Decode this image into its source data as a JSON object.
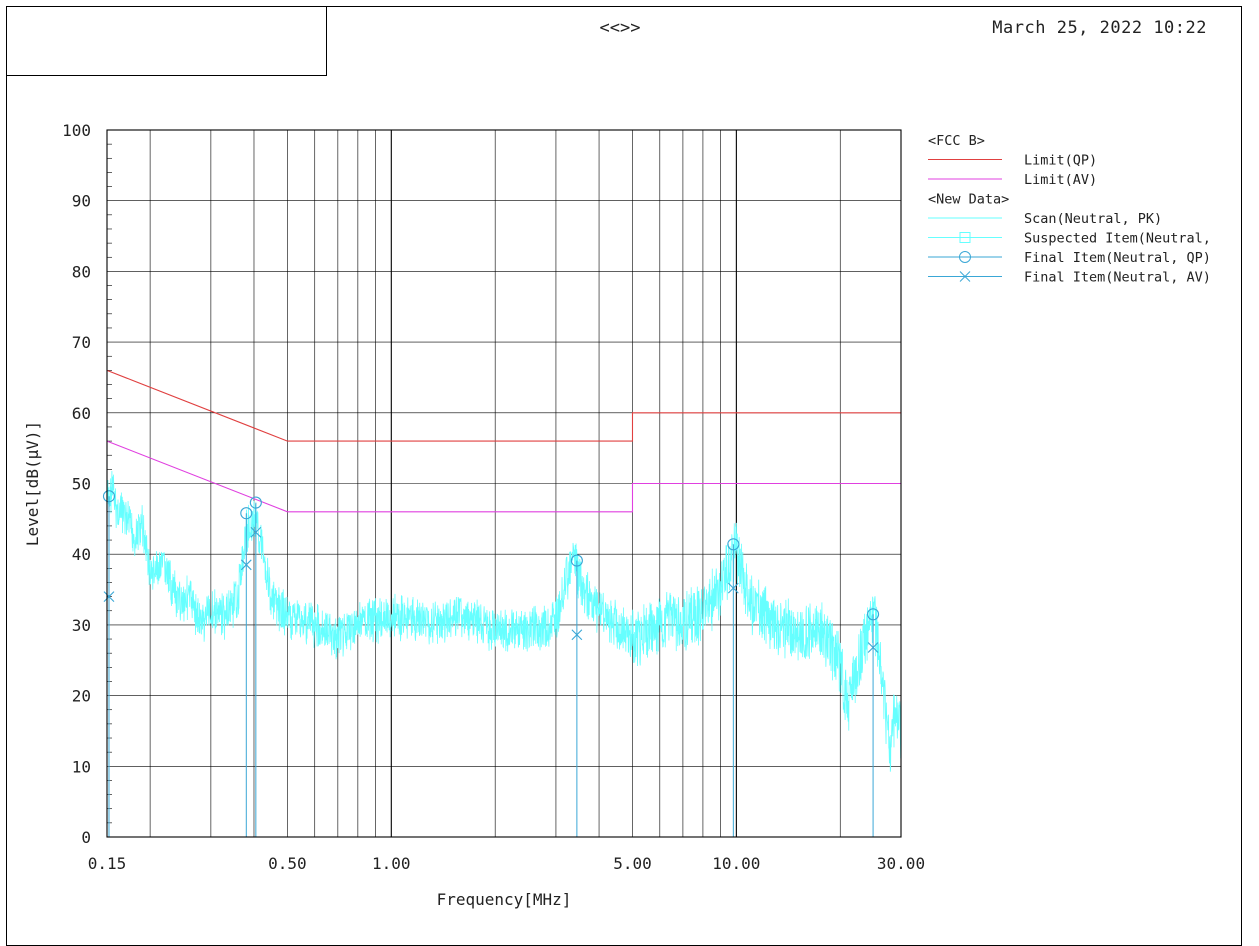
{
  "header": {
    "center_text": "<<>>",
    "datetime": "March 25, 2022 10:22"
  },
  "colors": {
    "limit_qp": "#e04040",
    "limit_av": "#e040e0",
    "scan": "#66ffff",
    "final": "#3aa7d6",
    "grid": "#000000"
  },
  "chart_data": {
    "type": "line",
    "xlabel": "Frequency[MHz]",
    "ylabel": "Level[dB(µV)]",
    "x_scale": "log",
    "xlim": [
      0.15,
      30.0
    ],
    "ylim": [
      0,
      100
    ],
    "x_tick_labels": [
      "0.15",
      "0.50",
      "1.00",
      "5.00",
      "10.00",
      "30.00"
    ],
    "x_tick_values": [
      0.15,
      0.5,
      1.0,
      5.0,
      10.0,
      30.0
    ],
    "y_tick_labels": [
      "0",
      "10",
      "20",
      "30",
      "40",
      "50",
      "60",
      "70",
      "80",
      "90",
      "100"
    ],
    "y_tick_values": [
      0,
      10,
      20,
      30,
      40,
      50,
      60,
      70,
      80,
      90,
      100
    ],
    "grid": true,
    "legend": {
      "placement": "right",
      "groups": [
        {
          "title": "<FCC B>",
          "entries": [
            {
              "label": "Limit(QP)",
              "color_key": "limit_qp",
              "marker": "line"
            },
            {
              "label": "Limit(AV)",
              "color_key": "limit_av",
              "marker": "line"
            }
          ]
        },
        {
          "title": "<New Data>",
          "entries": [
            {
              "label": "Scan(Neutral, PK)",
              "color_key": "scan",
              "marker": "line"
            },
            {
              "label": "Suspected Item(Neutral,",
              "color_key": "scan",
              "marker": "square"
            },
            {
              "label": "Final Item(Neutral, QP)",
              "color_key": "final",
              "marker": "circle"
            },
            {
              "label": "Final Item(Neutral, AV)",
              "color_key": "final",
              "marker": "x"
            }
          ]
        }
      ]
    },
    "limit_qp": [
      [
        0.15,
        66
      ],
      [
        0.5,
        56
      ],
      [
        5.0,
        56
      ],
      [
        5.0,
        60
      ],
      [
        30.0,
        60
      ]
    ],
    "limit_av": [
      [
        0.15,
        56
      ],
      [
        0.5,
        46
      ],
      [
        5.0,
        46
      ],
      [
        5.0,
        50
      ],
      [
        30.0,
        50
      ]
    ],
    "scan_envelope": [
      [
        0.15,
        50
      ],
      [
        0.155,
        52
      ],
      [
        0.16,
        49
      ],
      [
        0.17,
        48
      ],
      [
        0.18,
        45
      ],
      [
        0.19,
        47
      ],
      [
        0.2,
        40
      ],
      [
        0.22,
        41
      ],
      [
        0.24,
        36
      ],
      [
        0.26,
        37
      ],
      [
        0.28,
        33
      ],
      [
        0.3,
        35
      ],
      [
        0.33,
        34
      ],
      [
        0.36,
        37
      ],
      [
        0.38,
        46
      ],
      [
        0.4,
        48
      ],
      [
        0.42,
        45
      ],
      [
        0.45,
        36
      ],
      [
        0.5,
        34
      ],
      [
        0.6,
        33
      ],
      [
        0.7,
        31
      ],
      [
        0.8,
        33
      ],
      [
        1.0,
        34
      ],
      [
        1.3,
        33
      ],
      [
        1.6,
        34
      ],
      [
        2.0,
        32
      ],
      [
        2.5,
        32
      ],
      [
        3.0,
        33
      ],
      [
        3.2,
        40
      ],
      [
        3.4,
        42
      ],
      [
        3.6,
        38
      ],
      [
        4.0,
        35
      ],
      [
        4.5,
        33
      ],
      [
        5.0,
        32
      ],
      [
        6.0,
        34
      ],
      [
        7.0,
        34
      ],
      [
        8.0,
        36
      ],
      [
        9.0,
        39
      ],
      [
        9.5,
        42
      ],
      [
        10.0,
        45
      ],
      [
        10.5,
        40
      ],
      [
        11.0,
        37
      ],
      [
        13.0,
        34
      ],
      [
        15.0,
        33
      ],
      [
        18.0,
        33
      ],
      [
        20.0,
        28
      ],
      [
        21.0,
        22
      ],
      [
        22.0,
        27
      ],
      [
        24.0,
        33
      ],
      [
        25.0,
        35
      ],
      [
        26.0,
        30
      ],
      [
        27.0,
        22
      ],
      [
        28.0,
        17
      ],
      [
        29.0,
        22
      ],
      [
        30.0,
        19
      ]
    ],
    "final_qp": [
      [
        0.152,
        48.2
      ],
      [
        0.38,
        45.8
      ],
      [
        0.405,
        47.3
      ],
      [
        3.45,
        39.1
      ],
      [
        9.8,
        41.4
      ],
      [
        24.9,
        31.5
      ]
    ],
    "final_av": [
      [
        0.152,
        34.0
      ],
      [
        0.38,
        38.5
      ],
      [
        0.405,
        43.1
      ],
      [
        3.45,
        28.6
      ],
      [
        9.8,
        35.2
      ],
      [
        24.9,
        26.8
      ]
    ]
  }
}
